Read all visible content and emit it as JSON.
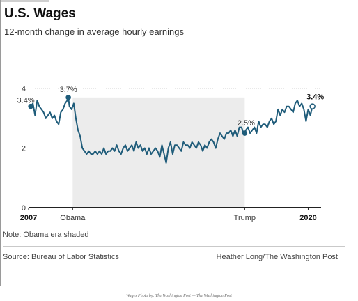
{
  "header": {
    "title": "U.S. Wages",
    "subtitle": "12-month change in average hourly earnings"
  },
  "footer": {
    "note": "Note: Obama era shaded",
    "source": "Source: Bureau of Labor Statistics",
    "credit": "Heather Long/The Washington Post"
  },
  "caption": "Wages Photo by: The Washington Post — The Washington Post",
  "colors": {
    "line": "#1f5c7a",
    "shade": "#ececec",
    "axis": "#222222",
    "grid": "#d0d0d0"
  },
  "chart_data": {
    "type": "line",
    "title": "U.S. Wages",
    "subtitle": "12-month change in average hourly earnings",
    "xlabel": "",
    "ylabel": "",
    "xlim": [
      2007,
      2020.6
    ],
    "ylim": [
      0,
      4
    ],
    "grid": true,
    "yticks": [
      {
        "value": 0,
        "label": "0"
      },
      {
        "value": 2,
        "label": "2"
      },
      {
        "value": 4,
        "label": "4"
      }
    ],
    "xticks": [
      {
        "value": 2007,
        "label": "2007",
        "bold": true
      },
      {
        "value": 2009.05,
        "label": "Obama",
        "bold": false
      },
      {
        "value": 2017.05,
        "label": "Trump",
        "bold": false
      },
      {
        "value": 2020,
        "label": "2020",
        "bold": true
      }
    ],
    "shaded_region": {
      "x": [
        2009.05,
        2017.05
      ],
      "label": "Obama era"
    },
    "annotations": [
      {
        "x": 2007.1,
        "y": 3.4,
        "label": "3.4%",
        "bold": false,
        "dot": true
      },
      {
        "x": 2008.85,
        "y": 3.7,
        "label": "3.7%",
        "bold": false,
        "dot": true
      },
      {
        "x": 2017.05,
        "y": 2.5,
        "label": "2.5%",
        "bold": false,
        "dot": true
      },
      {
        "x": 2020.2,
        "y": 3.4,
        "label": "3.4%",
        "bold": true,
        "dot": true
      }
    ],
    "series": [
      {
        "x": [
          2007.1,
          2007.2,
          2007.3,
          2007.4,
          2007.5,
          2007.6,
          2007.7,
          2007.8,
          2007.9,
          2008.0,
          2008.1,
          2008.2,
          2008.3,
          2008.4,
          2008.5,
          2008.6,
          2008.7,
          2008.8,
          2008.85,
          2008.9,
          2009.0,
          2009.1,
          2009.2,
          2009.3,
          2009.4,
          2009.5,
          2009.6,
          2009.7,
          2009.8,
          2009.9,
          2010.0,
          2010.1,
          2010.2,
          2010.3,
          2010.4,
          2010.5,
          2010.6,
          2010.7,
          2010.8,
          2010.9,
          2011.0,
          2011.1,
          2011.2,
          2011.3,
          2011.4,
          2011.5,
          2011.6,
          2011.7,
          2011.8,
          2011.9,
          2012.0,
          2012.1,
          2012.2,
          2012.3,
          2012.4,
          2012.5,
          2012.6,
          2012.7,
          2012.8,
          2012.9,
          2013.0,
          2013.1,
          2013.2,
          2013.3,
          2013.4,
          2013.5,
          2013.6,
          2013.7,
          2013.8,
          2013.9,
          2014.0,
          2014.1,
          2014.2,
          2014.3,
          2014.4,
          2014.5,
          2014.6,
          2014.7,
          2014.8,
          2014.9,
          2015.0,
          2015.1,
          2015.2,
          2015.3,
          2015.4,
          2015.5,
          2015.6,
          2015.7,
          2015.8,
          2015.9,
          2016.0,
          2016.1,
          2016.2,
          2016.3,
          2016.4,
          2016.5,
          2016.6,
          2016.7,
          2016.8,
          2016.9,
          2017.0,
          2017.05,
          2017.1,
          2017.2,
          2017.3,
          2017.4,
          2017.5,
          2017.6,
          2017.7,
          2017.8,
          2017.9,
          2018.0,
          2018.1,
          2018.2,
          2018.3,
          2018.4,
          2018.5,
          2018.6,
          2018.7,
          2018.8,
          2018.9,
          2019.0,
          2019.1,
          2019.2,
          2019.3,
          2019.4,
          2019.5,
          2019.6,
          2019.7,
          2019.8,
          2019.9,
          2020.0,
          2020.1,
          2020.2
        ],
        "values": [
          3.4,
          3.5,
          3.1,
          3.6,
          3.4,
          3.3,
          3.2,
          3.0,
          3.1,
          3.2,
          3.0,
          3.1,
          2.9,
          2.8,
          3.2,
          3.3,
          3.5,
          3.6,
          3.7,
          3.4,
          3.3,
          3.5,
          3.0,
          2.6,
          2.4,
          2.0,
          1.9,
          1.8,
          1.9,
          1.8,
          1.8,
          1.9,
          1.8,
          1.9,
          1.8,
          2.0,
          1.8,
          1.9,
          1.9,
          2.0,
          1.9,
          2.1,
          1.9,
          1.8,
          2.0,
          2.1,
          1.9,
          2.0,
          2.1,
          1.9,
          2.2,
          2.0,
          2.1,
          1.9,
          2.0,
          1.8,
          2.0,
          1.8,
          1.9,
          2.0,
          1.9,
          1.7,
          2.1,
          1.8,
          1.5,
          2.0,
          2.2,
          1.8,
          2.1,
          2.1,
          2.0,
          1.9,
          2.2,
          2.1,
          2.1,
          2.0,
          2.2,
          2.1,
          2.0,
          2.2,
          2.1,
          1.9,
          2.1,
          2.0,
          2.2,
          2.3,
          2.2,
          2.0,
          2.3,
          2.5,
          2.4,
          2.3,
          2.5,
          2.5,
          2.6,
          2.4,
          2.6,
          2.4,
          2.7,
          2.7,
          2.5,
          2.5,
          2.6,
          2.7,
          2.5,
          2.6,
          2.7,
          2.5,
          2.9,
          2.7,
          2.8,
          2.8,
          2.7,
          2.9,
          3.0,
          2.8,
          2.9,
          3.3,
          3.1,
          3.3,
          3.2,
          3.4,
          3.4,
          3.3,
          3.2,
          3.5,
          3.6,
          3.4,
          3.5,
          3.3,
          2.9,
          3.3,
          3.1,
          3.4
        ]
      }
    ]
  }
}
